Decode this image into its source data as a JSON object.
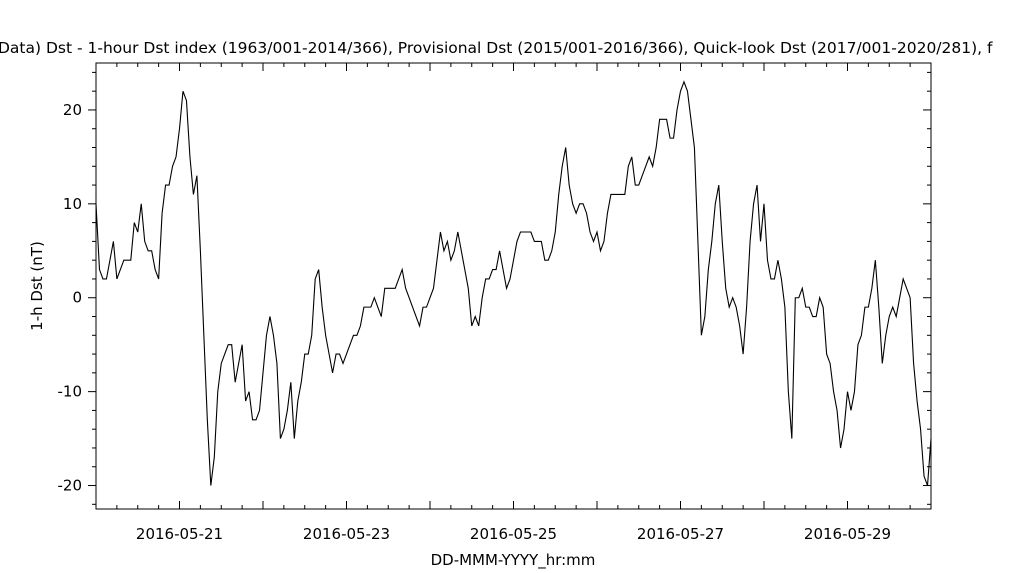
{
  "chart_data": {
    "type": "line",
    "title": "Data)  Dst - 1-hour Dst index (1963/001-2014/366), Provisional Dst (2015/001-2016/366), Quick-look Dst (2017/001-2020/281), f",
    "xlabel": "DD-MMM-YYYY_hr:mm",
    "ylabel": "1-h Dst (nT)",
    "xlim": [
      0,
      240
    ],
    "ylim": [
      -22.5,
      25
    ],
    "x_unit": "hours since 2016-05-20 00:00",
    "grid": false,
    "x_ticks": [
      {
        "label": "2016-05-21",
        "x": 24
      },
      {
        "label": "2016-05-23",
        "x": 72
      },
      {
        "label": "2016-05-25",
        "x": 120
      },
      {
        "label": "2016-05-27",
        "x": 168
      },
      {
        "label": "2016-05-29",
        "x": 216
      }
    ],
    "y_ticks": [
      {
        "label": "20",
        "y": 20
      },
      {
        "label": "10",
        "y": 10
      },
      {
        "label": "0",
        "y": 0
      },
      {
        "label": "-10",
        "y": -10
      },
      {
        "label": "-20",
        "y": -20
      }
    ],
    "series": [
      {
        "name": "",
        "points": [
          [
            0,
            10
          ],
          [
            1,
            3
          ],
          [
            2,
            2
          ],
          [
            3,
            2
          ],
          [
            4,
            4
          ],
          [
            5,
            6
          ],
          [
            6,
            2
          ],
          [
            7,
            3
          ],
          [
            8,
            4
          ],
          [
            9,
            4
          ],
          [
            10,
            4
          ],
          [
            11,
            8
          ],
          [
            12,
            7
          ],
          [
            13,
            10
          ],
          [
            14,
            6
          ],
          [
            15,
            5
          ],
          [
            16,
            5
          ],
          [
            17,
            3
          ],
          [
            18,
            2
          ],
          [
            19,
            9
          ],
          [
            20,
            12
          ],
          [
            21,
            12
          ],
          [
            22,
            14
          ],
          [
            23,
            15
          ],
          [
            24,
            18
          ],
          [
            25,
            22
          ],
          [
            26,
            21
          ],
          [
            27,
            15
          ],
          [
            28,
            11
          ],
          [
            29,
            13
          ],
          [
            30,
            5
          ],
          [
            31,
            -4
          ],
          [
            32,
            -13
          ],
          [
            33,
            -20
          ],
          [
            34,
            -17
          ],
          [
            35,
            -10
          ],
          [
            36,
            -7
          ],
          [
            37,
            -6
          ],
          [
            38,
            -5
          ],
          [
            39,
            -5
          ],
          [
            40,
            -9
          ],
          [
            41,
            -7
          ],
          [
            42,
            -5
          ],
          [
            43,
            -11
          ],
          [
            44,
            -10
          ],
          [
            45,
            -13
          ],
          [
            46,
            -13
          ],
          [
            47,
            -12
          ],
          [
            48,
            -8
          ],
          [
            49,
            -4
          ],
          [
            50,
            -2
          ],
          [
            51,
            -4
          ],
          [
            52,
            -7
          ],
          [
            53,
            -15
          ],
          [
            54,
            -14
          ],
          [
            55,
            -12
          ],
          [
            56,
            -9
          ],
          [
            57,
            -15
          ],
          [
            58,
            -11
          ],
          [
            59,
            -9
          ],
          [
            60,
            -6
          ],
          [
            61,
            -6
          ],
          [
            62,
            -4
          ],
          [
            63,
            2
          ],
          [
            64,
            3
          ],
          [
            65,
            -1
          ],
          [
            66,
            -4
          ],
          [
            67,
            -6
          ],
          [
            68,
            -8
          ],
          [
            69,
            -6
          ],
          [
            70,
            -6
          ],
          [
            71,
            -7
          ],
          [
            72,
            -6
          ],
          [
            73,
            -5
          ],
          [
            74,
            -4
          ],
          [
            75,
            -4
          ],
          [
            76,
            -3
          ],
          [
            77,
            -1
          ],
          [
            78,
            -1
          ],
          [
            79,
            -1
          ],
          [
            80,
            0
          ],
          [
            81,
            -1
          ],
          [
            82,
            -2
          ],
          [
            83,
            1
          ],
          [
            84,
            1
          ],
          [
            85,
            1
          ],
          [
            86,
            1
          ],
          [
            87,
            2
          ],
          [
            88,
            3
          ],
          [
            89,
            1
          ],
          [
            90,
            0
          ],
          [
            91,
            -1
          ],
          [
            92,
            -2
          ],
          [
            93,
            -3
          ],
          [
            94,
            -1
          ],
          [
            95,
            -1
          ],
          [
            96,
            0
          ],
          [
            97,
            1
          ],
          [
            98,
            4
          ],
          [
            99,
            7
          ],
          [
            100,
            5
          ],
          [
            101,
            6
          ],
          [
            102,
            4
          ],
          [
            103,
            5
          ],
          [
            104,
            7
          ],
          [
            105,
            5
          ],
          [
            106,
            3
          ],
          [
            107,
            1
          ],
          [
            108,
            -3
          ],
          [
            109,
            -2
          ],
          [
            110,
            -3
          ],
          [
            111,
            0
          ],
          [
            112,
            2
          ],
          [
            113,
            2
          ],
          [
            114,
            3
          ],
          [
            115,
            3
          ],
          [
            116,
            5
          ],
          [
            117,
            3
          ],
          [
            118,
            1
          ],
          [
            119,
            2
          ],
          [
            120,
            4
          ],
          [
            121,
            6
          ],
          [
            122,
            7
          ],
          [
            123,
            7
          ],
          [
            124,
            7
          ],
          [
            125,
            7
          ],
          [
            126,
            6
          ],
          [
            127,
            6
          ],
          [
            128,
            6
          ],
          [
            129,
            4
          ],
          [
            130,
            4
          ],
          [
            131,
            5
          ],
          [
            132,
            7
          ],
          [
            133,
            11
          ],
          [
            134,
            14
          ],
          [
            135,
            16
          ],
          [
            136,
            12
          ],
          [
            137,
            10
          ],
          [
            138,
            9
          ],
          [
            139,
            10
          ],
          [
            140,
            10
          ],
          [
            141,
            9
          ],
          [
            142,
            7
          ],
          [
            143,
            6
          ],
          [
            144,
            7
          ],
          [
            145,
            5
          ],
          [
            146,
            6
          ],
          [
            147,
            9
          ],
          [
            148,
            11
          ],
          [
            149,
            11
          ],
          [
            150,
            11
          ],
          [
            151,
            11
          ],
          [
            152,
            11
          ],
          [
            153,
            14
          ],
          [
            154,
            15
          ],
          [
            155,
            12
          ],
          [
            156,
            12
          ],
          [
            157,
            13
          ],
          [
            158,
            14
          ],
          [
            159,
            15
          ],
          [
            160,
            14
          ],
          [
            161,
            16
          ],
          [
            162,
            19
          ],
          [
            163,
            19
          ],
          [
            164,
            19
          ],
          [
            165,
            17
          ],
          [
            166,
            17
          ],
          [
            167,
            20
          ],
          [
            168,
            22
          ],
          [
            169,
            23
          ],
          [
            170,
            22
          ],
          [
            171,
            19
          ],
          [
            172,
            16
          ],
          [
            173,
            6
          ],
          [
            174,
            -4
          ],
          [
            175,
            -2
          ],
          [
            176,
            3
          ],
          [
            177,
            6
          ],
          [
            178,
            10
          ],
          [
            179,
            12
          ],
          [
            180,
            6
          ],
          [
            181,
            1
          ],
          [
            182,
            -1
          ],
          [
            183,
            0
          ],
          [
            184,
            -1
          ],
          [
            185,
            -3
          ],
          [
            186,
            -6
          ],
          [
            187,
            -1
          ],
          [
            188,
            6
          ],
          [
            189,
            10
          ],
          [
            190,
            12
          ],
          [
            191,
            6
          ],
          [
            192,
            10
          ],
          [
            193,
            4
          ],
          [
            194,
            2
          ],
          [
            195,
            2
          ],
          [
            196,
            4
          ],
          [
            197,
            2
          ],
          [
            198,
            -1
          ],
          [
            199,
            -10
          ],
          [
            200,
            -15
          ],
          [
            201,
            0
          ],
          [
            202,
            0
          ],
          [
            203,
            1
          ],
          [
            204,
            -1
          ],
          [
            205,
            -1
          ],
          [
            206,
            -2
          ],
          [
            207,
            -2
          ],
          [
            208,
            0
          ],
          [
            209,
            -1
          ],
          [
            210,
            -6
          ],
          [
            211,
            -7
          ],
          [
            212,
            -10
          ],
          [
            213,
            -12
          ],
          [
            214,
            -16
          ],
          [
            215,
            -14
          ],
          [
            216,
            -10
          ],
          [
            217,
            -12
          ],
          [
            218,
            -10
          ],
          [
            219,
            -5
          ],
          [
            220,
            -4
          ],
          [
            221,
            -1
          ],
          [
            222,
            -1
          ],
          [
            223,
            1
          ],
          [
            224,
            4
          ],
          [
            225,
            -1
          ],
          [
            226,
            -7
          ],
          [
            227,
            -4
          ],
          [
            228,
            -2
          ],
          [
            229,
            -1
          ],
          [
            230,
            -2
          ],
          [
            231,
            0
          ],
          [
            232,
            2
          ],
          [
            233,
            1
          ],
          [
            234,
            0
          ],
          [
            235,
            -7
          ],
          [
            236,
            -11
          ],
          [
            237,
            -14
          ],
          [
            238,
            -19
          ],
          [
            239,
            -20
          ],
          [
            240,
            -15
          ]
        ]
      }
    ]
  }
}
